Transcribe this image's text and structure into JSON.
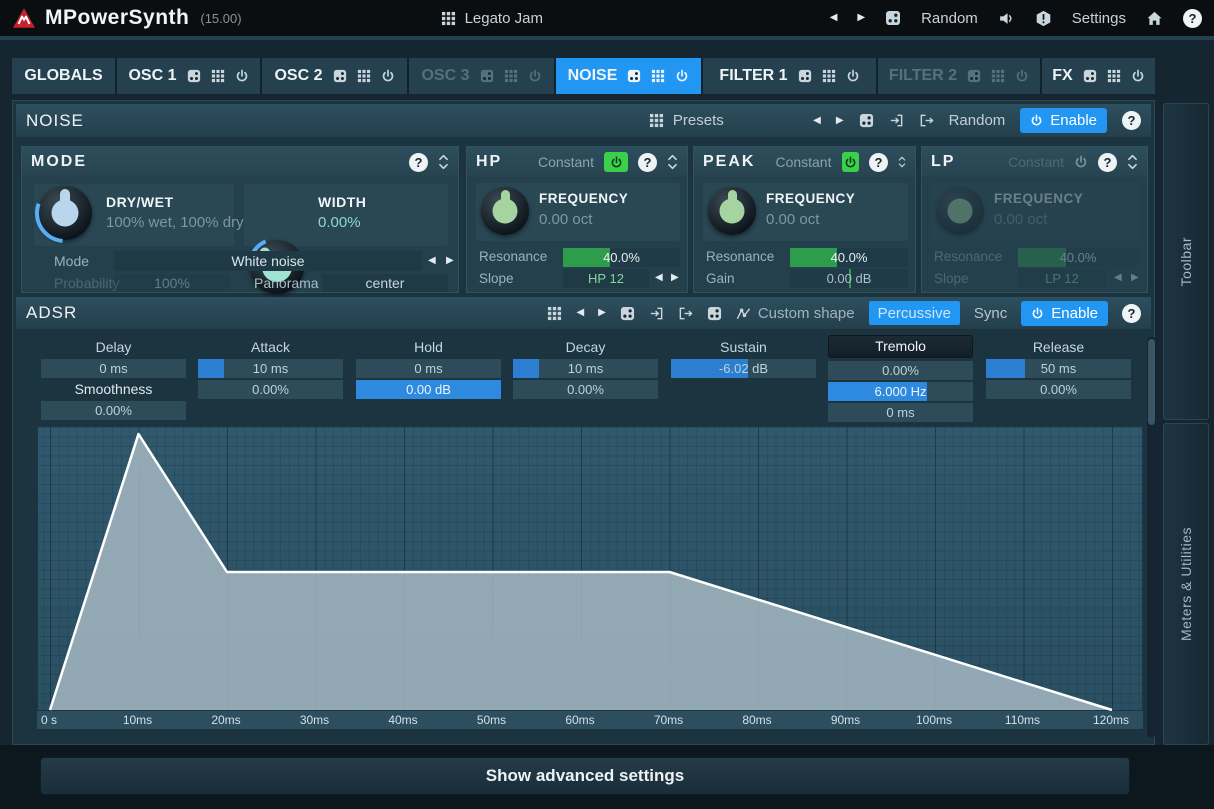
{
  "titlebar": {
    "app": "MPowerSynth",
    "version": "(15.00)",
    "preset": "Legato Jam",
    "random": "Random",
    "settings": "Settings"
  },
  "icons": {
    "prev": "◀",
    "next": "▶",
    "help": "?"
  },
  "tabs": [
    {
      "label": "GLOBALS"
    },
    {
      "label": "OSC 1"
    },
    {
      "label": "OSC 2"
    },
    {
      "label": "OSC 3"
    },
    {
      "label": "NOISE"
    },
    {
      "label": "FILTER 1"
    },
    {
      "label": "FILTER 2"
    },
    {
      "label": "FX"
    }
  ],
  "noise": {
    "title": "NOISE",
    "presets": "Presets",
    "random": "Random",
    "enable": "Enable"
  },
  "mode": {
    "title": "MODE",
    "drywet_label": "DRY/WET",
    "drywet_value": "100% wet, 100% dry",
    "width_label": "WIDTH",
    "width_value": "0.00%",
    "mode_label": "Mode",
    "mode_value": "White noise",
    "probability_label": "Probability",
    "probability_value": "100%",
    "panorama_label": "Panorama",
    "panorama_value": "center"
  },
  "hp": {
    "title": "HP",
    "mode": "Constant",
    "freq_label": "FREQUENCY",
    "freq_value": "0.00 oct",
    "resonance_label": "Resonance",
    "resonance_value": "40.0%",
    "resonance_fill_pct": 40,
    "slope_label": "Slope",
    "slope_value": "HP 12"
  },
  "peak": {
    "title": "PEAK",
    "mode": "Constant",
    "freq_label": "FREQUENCY",
    "freq_value": "0.00 oct",
    "resonance_label": "Resonance",
    "resonance_value": "40.0%",
    "resonance_fill_pct": 40,
    "gain_label": "Gain",
    "gain_value": "0.00 dB"
  },
  "lp": {
    "title": "LP",
    "mode": "Constant",
    "freq_label": "FREQUENCY",
    "freq_value": "0.00 oct",
    "resonance_label": "Resonance",
    "resonance_value": "40.0%",
    "resonance_fill_pct": 40,
    "slope_label": "Slope",
    "slope_value": "LP 12"
  },
  "adsr": {
    "title": "ADSR",
    "custom_shape": "Custom shape",
    "percussive": "Percussive",
    "sync": "Sync",
    "enable": "Enable",
    "delay": {
      "label": "Delay",
      "time": "0 ms",
      "time_fill_pct": 0,
      "smoothness_label": "Smoothness",
      "smoothness": "0.00%",
      "smoothness_fill_pct": 0
    },
    "attack": {
      "label": "Attack",
      "time": "10 ms",
      "time_fill_pct": 18,
      "shape": "0.00%",
      "shape_fill_pct": 0
    },
    "hold": {
      "label": "Hold",
      "time": "0 ms",
      "time_fill_pct": 0,
      "level": "0.00 dB",
      "level_fill_pct": 100
    },
    "decay": {
      "label": "Decay",
      "time": "10 ms",
      "time_fill_pct": 18,
      "shape": "0.00%",
      "shape_fill_pct": 0
    },
    "sustain": {
      "label": "Sustain",
      "level": "-6.02 dB",
      "level_fill_pct": 53
    },
    "tremolo": {
      "label": "Tremolo",
      "depth": "0.00%",
      "depth_fill_pct": 0,
      "rate": "6.000 Hz",
      "rate_fill_pct": 68,
      "fade": "0 ms",
      "fade_fill_pct": 0
    },
    "release": {
      "label": "Release",
      "time": "50 ms",
      "time_fill_pct": 27,
      "shape": "0.00%",
      "shape_fill_pct": 0
    }
  },
  "chart_data": {
    "type": "area",
    "title": "ADSR envelope",
    "x_unit": "ms",
    "x_range_ms": [
      0,
      125
    ],
    "y_range": [
      0,
      1
    ],
    "grid": true,
    "line_color": "#ffffff",
    "fill_color": "rgba(170,188,198,0.82)",
    "envelope_points": [
      {
        "t_ms": 0,
        "level": 0.0
      },
      {
        "t_ms": 10,
        "level": 1.0
      },
      {
        "t_ms": 20,
        "level": 0.5
      },
      {
        "t_ms": 70,
        "level": 0.5
      },
      {
        "t_ms": 120,
        "level": 0.0
      }
    ],
    "x_ticks": [
      {
        "ms": 0,
        "label": "0 s"
      },
      {
        "ms": 10,
        "label": "10ms"
      },
      {
        "ms": 20,
        "label": "20ms"
      },
      {
        "ms": 30,
        "label": "30ms"
      },
      {
        "ms": 40,
        "label": "40ms"
      },
      {
        "ms": 50,
        "label": "50ms"
      },
      {
        "ms": 60,
        "label": "60ms"
      },
      {
        "ms": 70,
        "label": "70ms"
      },
      {
        "ms": 80,
        "label": "80ms"
      },
      {
        "ms": 90,
        "label": "90ms"
      },
      {
        "ms": 100,
        "label": "100ms"
      },
      {
        "ms": 110,
        "label": "110ms"
      },
      {
        "ms": 120,
        "label": "120ms"
      }
    ]
  },
  "footer": {
    "show_advanced": "Show advanced settings"
  },
  "sidebar": {
    "toolbar": "Toolbar",
    "meters": "Meters & Utilities"
  }
}
